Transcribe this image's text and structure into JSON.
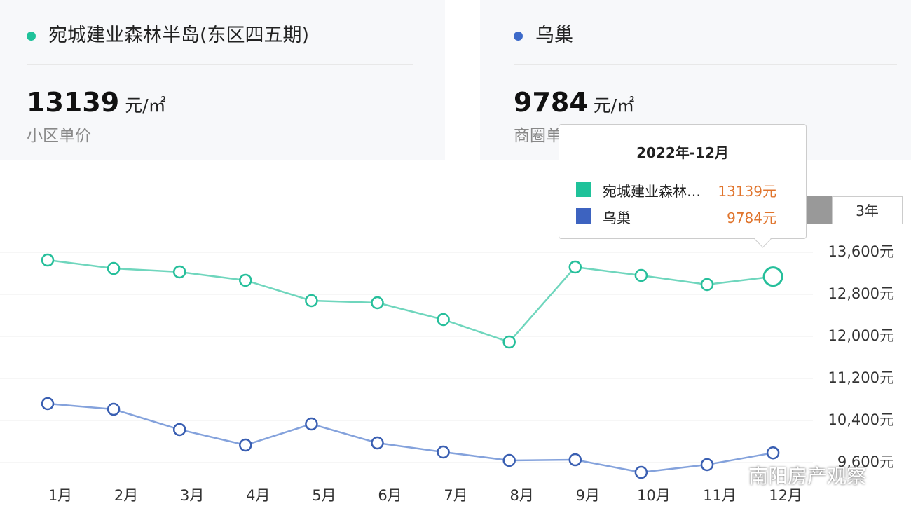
{
  "cards": [
    {
      "price": 13139,
      "unit": "元/㎡",
      "label": "小区单价"
    },
    {
      "price": 9784,
      "unit": "元/㎡",
      "label": "商圈单价"
    }
  ],
  "range_button": "3年",
  "watermark": "南阳房产观察",
  "chart_data": {
    "type": "line",
    "categories": [
      "1月",
      "2月",
      "3月",
      "4月",
      "5月",
      "6月",
      "7月",
      "8月",
      "9月",
      "10月",
      "11月",
      "12月"
    ],
    "series": [
      {
        "name": "宛城建业森林半岛(东区四五期)",
        "color": "#2ec4a0",
        "values": [
          13453,
          13293,
          13227,
          13067,
          12680,
          12640,
          12320,
          11893,
          13320,
          13160,
          12987,
          13139
        ]
      },
      {
        "name": "乌巢",
        "color": "#3d63b8",
        "values": [
          10720,
          10613,
          10227,
          9933,
          10333,
          9973,
          9800,
          9640,
          9653,
          9413,
          9560,
          9784
        ]
      }
    ],
    "ylim": [
      9200,
      14000
    ],
    "yticks": [
      {
        "value": 9600,
        "label": "9,600元"
      },
      {
        "value": 10400,
        "label": "10,400元"
      },
      {
        "value": 11200,
        "label": "11,200元"
      },
      {
        "value": 12000,
        "label": "12,000元"
      },
      {
        "value": 12800,
        "label": "12,800元"
      },
      {
        "value": 13600,
        "label": "13,600元"
      }
    ],
    "grid": true,
    "tooltip": {
      "title": "2022年-12月",
      "values": [
        13139,
        9784
      ],
      "value_labels": [
        "13139元",
        "9784元"
      ]
    }
  }
}
